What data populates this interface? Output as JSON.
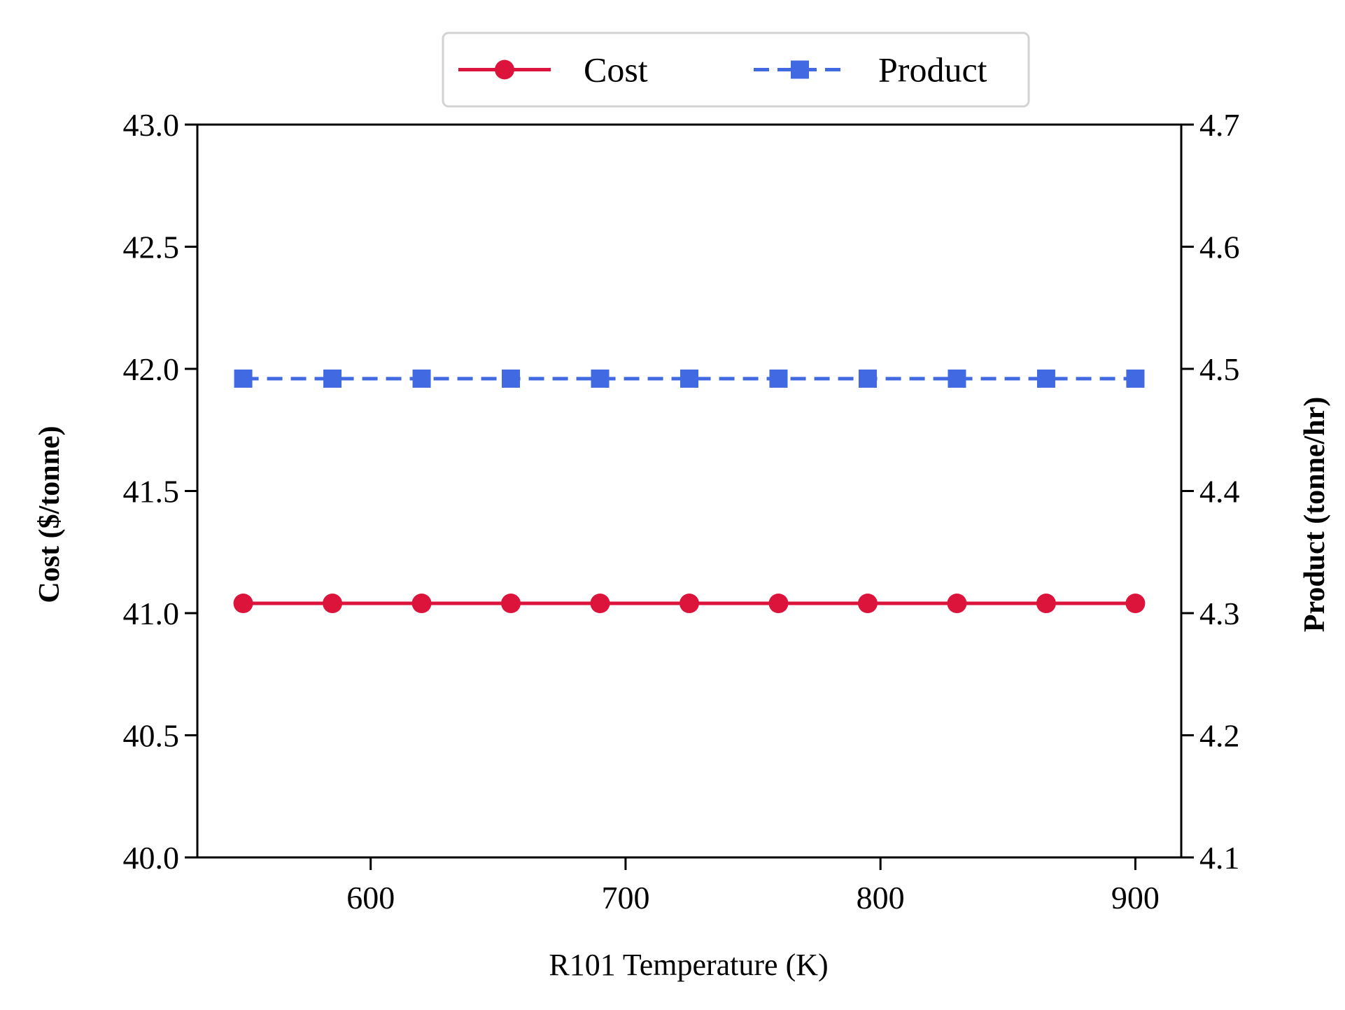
{
  "chart_data": {
    "type": "line",
    "x": [
      550,
      585,
      620,
      655,
      690,
      725,
      760,
      795,
      830,
      865,
      900
    ],
    "xlabel": "R101 Temperature (K)",
    "ylabel": "Cost ($/tonne)",
    "y2label": "Product (tonne/hr)",
    "xlim": [
      532,
      918
    ],
    "ylim": [
      40.0,
      43.0
    ],
    "y2lim": [
      4.1,
      4.7
    ],
    "xticks": [
      600,
      700,
      800,
      900
    ],
    "yticks": [
      40.0,
      40.5,
      41.0,
      41.5,
      42.0,
      42.5,
      43.0
    ],
    "y2ticks": [
      4.1,
      4.2,
      4.3,
      4.4,
      4.5,
      4.6,
      4.7
    ],
    "grid": false,
    "legend_placement": "top-center, outside plot",
    "series": [
      {
        "name": "Cost",
        "axis": "left",
        "color": "#DC143C",
        "marker": "circle",
        "linestyle": "solid",
        "values": [
          41.04,
          41.04,
          41.04,
          41.04,
          41.04,
          41.04,
          41.04,
          41.04,
          41.04,
          41.04,
          41.04
        ]
      },
      {
        "name": "Product",
        "axis": "right",
        "color": "#4169E1",
        "marker": "square",
        "linestyle": "dashed",
        "values": [
          4.492,
          4.492,
          4.492,
          4.492,
          4.492,
          4.492,
          4.492,
          4.492,
          4.492,
          4.492,
          4.492
        ]
      }
    ]
  }
}
